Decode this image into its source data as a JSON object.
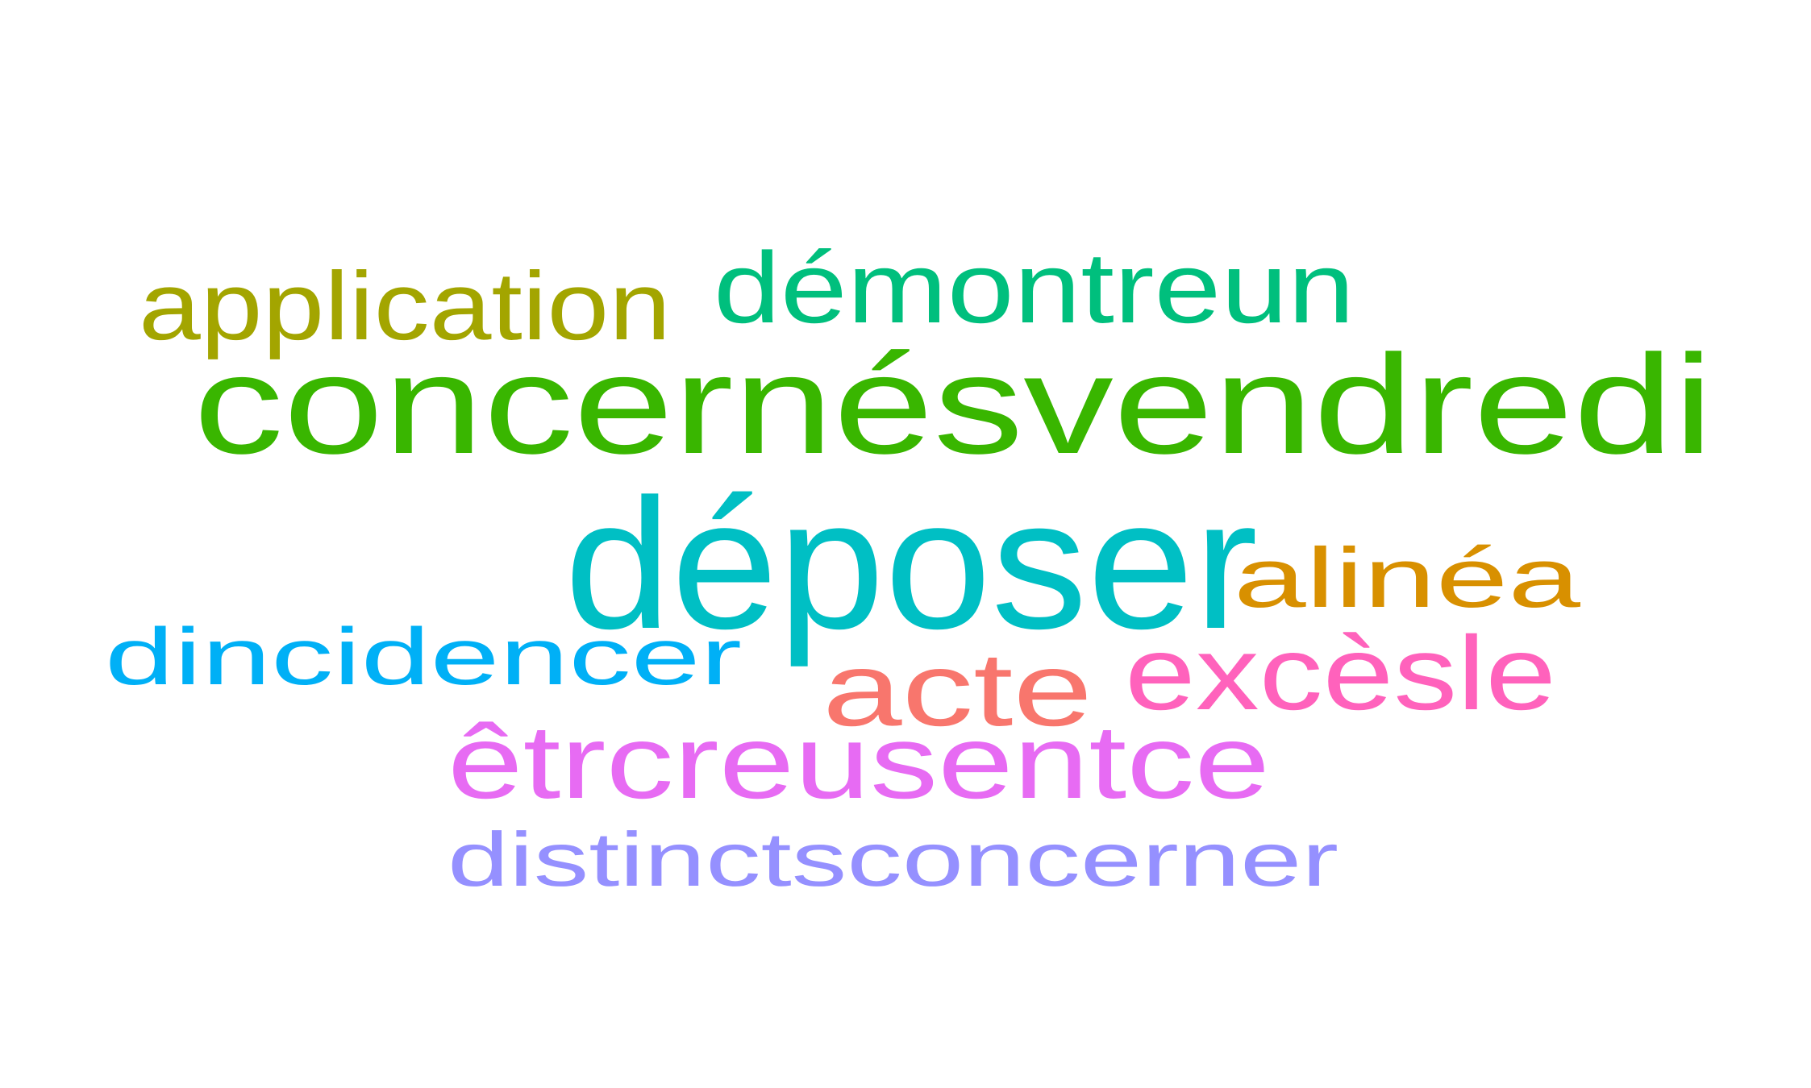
{
  "words": [
    {
      "id": "application",
      "text": "application",
      "color": "#A3A500"
    },
    {
      "id": "demontreun",
      "text": "démontreun",
      "color": "#00BF7D"
    },
    {
      "id": "concernesvendredi",
      "text": "concernésvendredi",
      "color": "#39B600"
    },
    {
      "id": "deposer",
      "text": "déposer",
      "color": "#00BFC4"
    },
    {
      "id": "alinea",
      "text": "alinéa",
      "color": "#D89000"
    },
    {
      "id": "dincidencer",
      "text": "dincidencer",
      "color": "#00B0F6"
    },
    {
      "id": "acte",
      "text": "acte",
      "color": "#F8766D"
    },
    {
      "id": "excesle",
      "text": "excèsle",
      "color": "#FF62BC"
    },
    {
      "id": "etrcreusentce",
      "text": "êtrcreusentce",
      "color": "#E76BF3"
    },
    {
      "id": "distinctsconcerner",
      "text": "distinctsconcerner",
      "color": "#9590FF"
    }
  ]
}
